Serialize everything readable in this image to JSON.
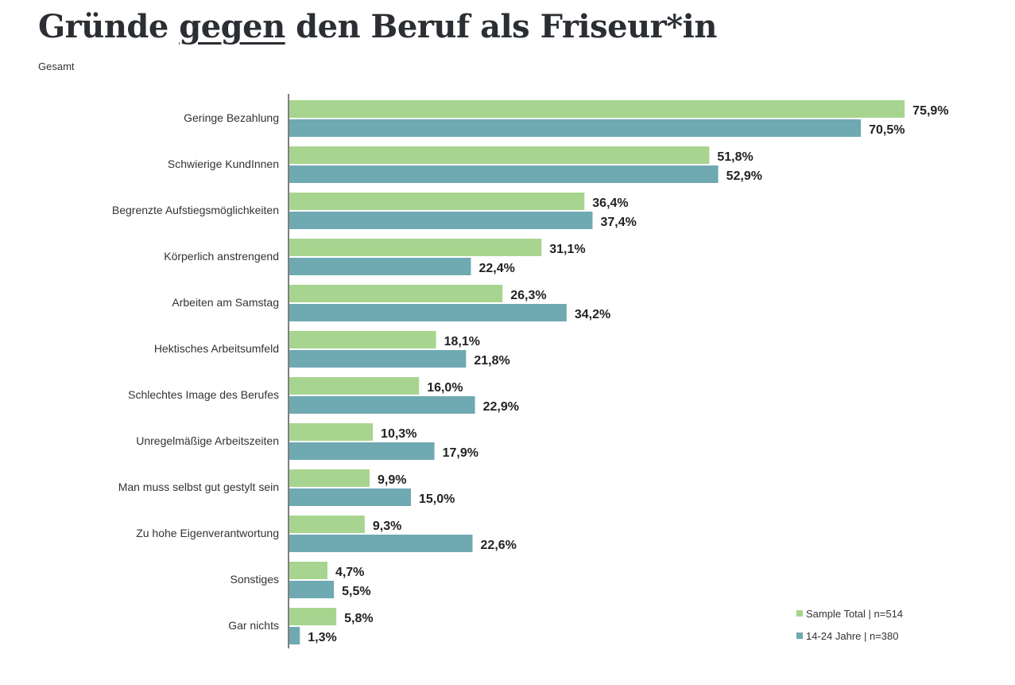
{
  "title": {
    "part1": "Gründe ",
    "emphasis": "gegen",
    "part2": " den Beruf als Friseur*in"
  },
  "subtitle": "Gesamt",
  "colors": {
    "series_1": "#a7d58f",
    "series_2": "#6fa9b2",
    "axis": "#555555",
    "value_text": "#222222",
    "label_text": "#333333"
  },
  "legend": [
    {
      "label": "Sample Total | n=514",
      "color": "#a7d58f"
    },
    {
      "label": "14-24 Jahre | n=380",
      "color": "#6fa9b2"
    }
  ],
  "chart_data": {
    "type": "bar",
    "orientation": "horizontal",
    "title": "Gründe gegen den Beruf als Friseur*in",
    "subtitle": "Gesamt",
    "categories": [
      "Geringe Bezahlung",
      "Schwierige KundInnen",
      "Begrenzte Aufstiegsmöglichkeiten",
      "Körperlich anstrengend",
      "Arbeiten am Samstag",
      "Hektisches Arbeitsumfeld",
      "Schlechtes Image des Berufes",
      "Unregelmäßige Arbeitszeiten",
      "Man muss selbst gut gestylt sein",
      "Zu hohe Eigenverantwortung",
      "Sonstiges",
      "Gar nichts"
    ],
    "series": [
      {
        "name": "Sample Total | n=514",
        "values": [
          75.9,
          51.8,
          36.4,
          31.1,
          26.3,
          18.1,
          16.0,
          10.3,
          9.9,
          9.3,
          4.7,
          5.8
        ],
        "labels": [
          "75,9%",
          "51,8%",
          "36,4%",
          "31,1%",
          "26,3%",
          "18,1%",
          "16,0%",
          "10,3%",
          "9,9%",
          "9,3%",
          "4,7%",
          "5,8%"
        ]
      },
      {
        "name": "14-24 Jahre | n=380",
        "values": [
          70.5,
          52.9,
          37.4,
          22.4,
          34.2,
          21.8,
          22.9,
          17.9,
          15.0,
          22.6,
          5.5,
          1.3
        ],
        "labels": [
          "70,5%",
          "52,9%",
          "37,4%",
          "22,4%",
          "34,2%",
          "21,8%",
          "22,9%",
          "17,9%",
          "15,0%",
          "22,6%",
          "5,5%",
          "1,3%"
        ]
      }
    ],
    "xlim": [
      0,
      100
    ],
    "grid": false,
    "legend_position": "bottom-right"
  }
}
